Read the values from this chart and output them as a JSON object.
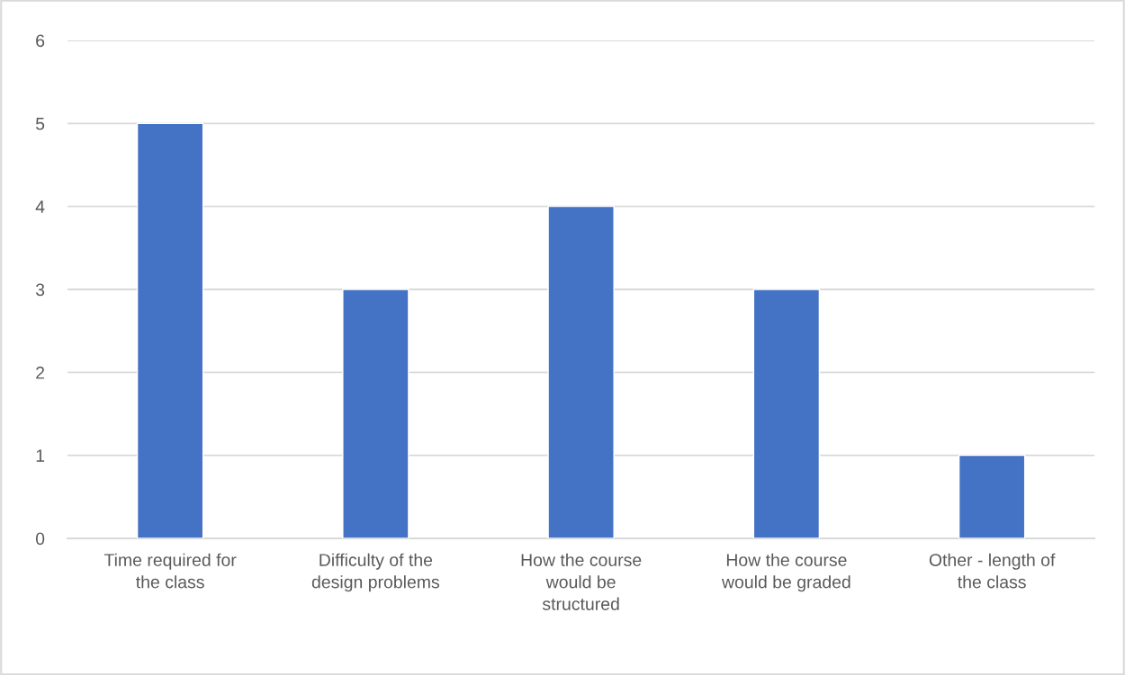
{
  "chart_data": {
    "type": "bar",
    "categories": [
      "Time required for\nthe class",
      "Difficulty of the\ndesign problems",
      "How the course\nwould be\nstructured",
      "How the course\nwould be graded",
      "Other - length of\nthe class"
    ],
    "values": [
      5,
      3,
      4,
      3,
      1
    ],
    "color": "#4472c4",
    "ylim": [
      0,
      6
    ],
    "yticks": [
      0,
      1,
      2,
      3,
      4,
      5,
      6
    ],
    "grid": "y"
  }
}
